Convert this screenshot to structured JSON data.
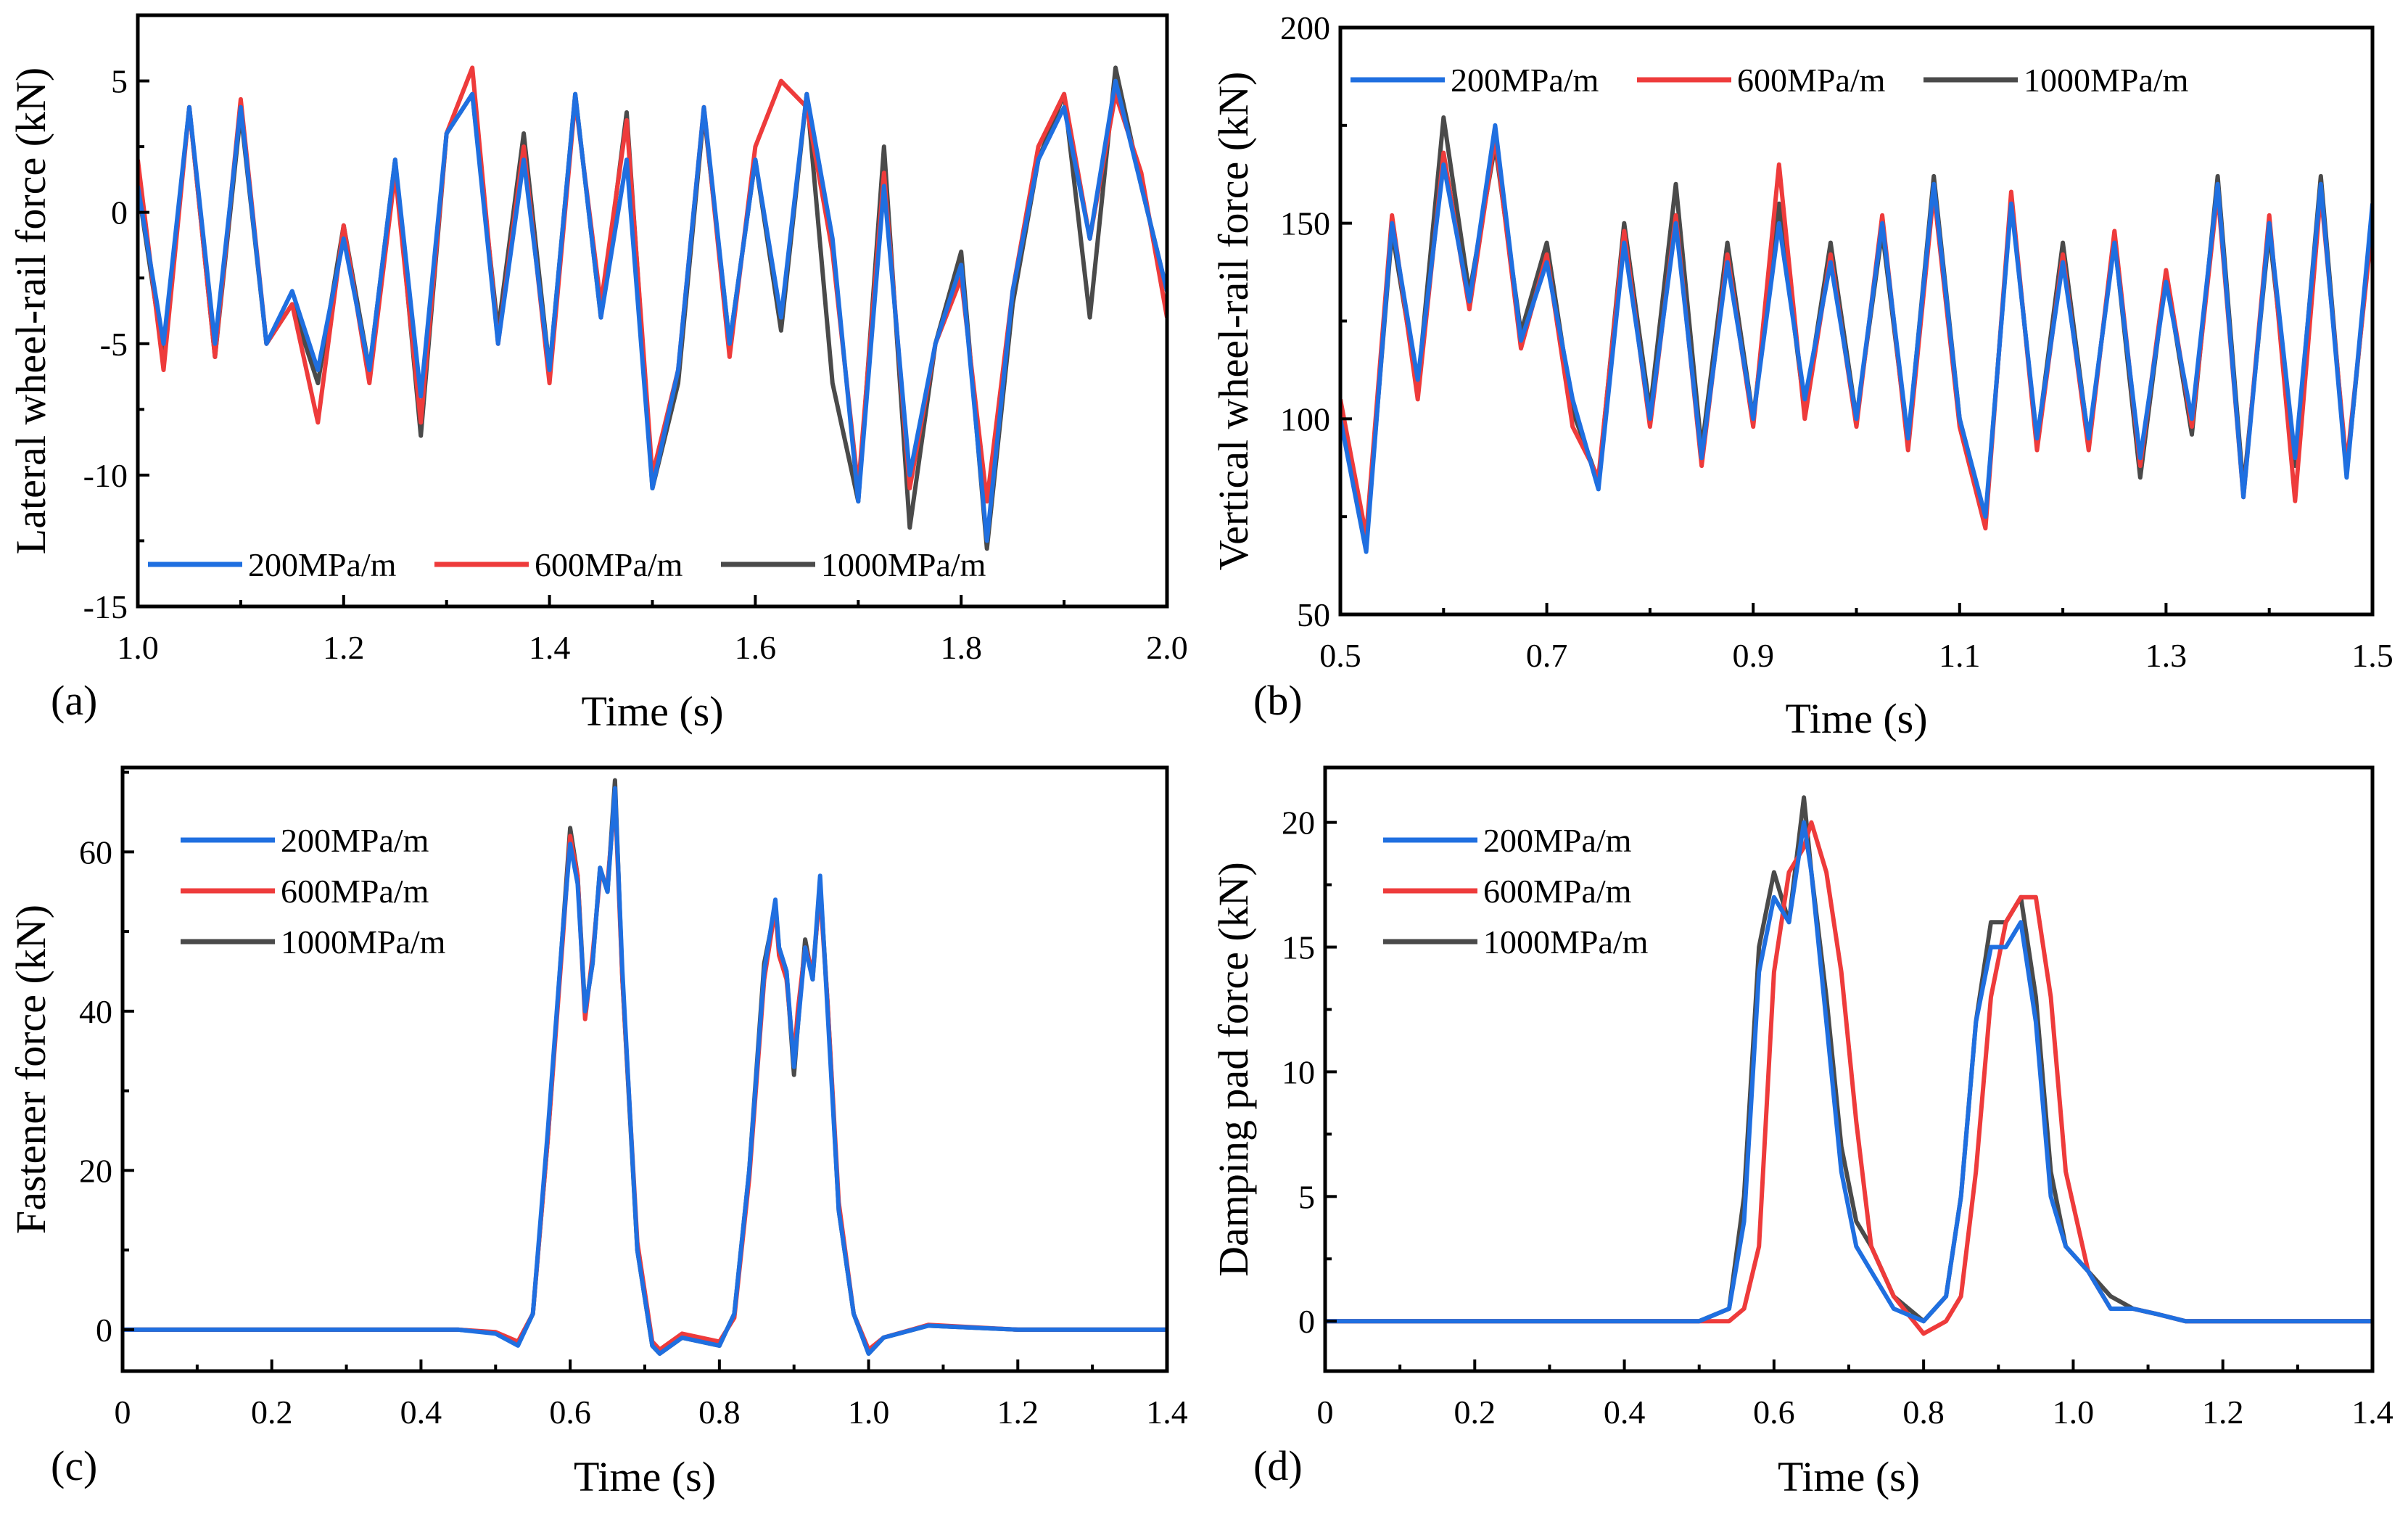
{
  "colors": {
    "s200": "#1f6fe0",
    "s600": "#ee3b3b",
    "s1000": "#4a4a4a"
  },
  "chart_data": [
    {
      "panel": "(a)",
      "type": "line",
      "xlabel": "Time (s)",
      "ylabel": "Lateral wheel-rail force (kN)",
      "xlim": [
        1.0,
        2.0
      ],
      "ylim": [
        -15,
        7.5
      ],
      "xticks": [
        1.0,
        1.2,
        1.4,
        1.6,
        1.8,
        2.0
      ],
      "xtick_labels": [
        "1.0",
        "1.2",
        "1.4",
        "1.6",
        "1.8",
        "2.0"
      ],
      "yticks": [
        -15,
        -10,
        -5,
        0,
        5
      ],
      "ytick_labels": [
        "-15",
        "-10",
        "-5",
        "0",
        "5"
      ],
      "legend": "bottom-horizontal",
      "x": [
        1.0,
        1.025,
        1.05,
        1.075,
        1.1,
        1.125,
        1.15,
        1.175,
        1.2,
        1.225,
        1.25,
        1.275,
        1.3,
        1.325,
        1.35,
        1.375,
        1.4,
        1.425,
        1.45,
        1.475,
        1.5,
        1.525,
        1.55,
        1.575,
        1.6,
        1.625,
        1.65,
        1.675,
        1.7,
        1.725,
        1.75,
        1.775,
        1.8,
        1.825,
        1.85,
        1.875,
        1.9,
        1.925,
        1.95,
        1.975,
        2.0
      ],
      "series": [
        {
          "name": "200MPa/m",
          "color": "s200",
          "values": [
            1,
            -5,
            4,
            -5,
            4,
            -5,
            -3,
            -6,
            -1,
            -6,
            2,
            -7,
            3,
            4.5,
            -5,
            2,
            -6,
            4.5,
            -4,
            2,
            -10.5,
            -6,
            4,
            -5,
            2,
            -4,
            4.5,
            -1,
            -11,
            1,
            -10,
            -5,
            -2,
            -12.5,
            -3,
            2,
            4,
            -1,
            5,
            1,
            -3
          ]
        },
        {
          "name": "600MPa/m",
          "color": "s600",
          "values": [
            2,
            -6,
            4,
            -5.5,
            4.3,
            -5,
            -3.5,
            -8,
            -0.5,
            -6.5,
            1.5,
            -8,
            3,
            5.5,
            -5,
            2.5,
            -6.5,
            4.3,
            -3.5,
            3.5,
            -10,
            -6,
            4,
            -5.5,
            2.5,
            5,
            4,
            -1.5,
            -10.5,
            1.5,
            -10.5,
            -5,
            -2.5,
            -11,
            -3,
            2.5,
            4.5,
            -1,
            4.5,
            1.5,
            -4
          ]
        },
        {
          "name": "1000MPa/m",
          "color": "s1000",
          "values": [
            1,
            -5.5,
            4,
            -5.5,
            3.8,
            -5,
            -3.5,
            -6.5,
            -0.5,
            -6,
            2,
            -8.5,
            3,
            4.5,
            -4.5,
            3,
            -6,
            4.5,
            -4,
            3.8,
            -10.5,
            -6.5,
            3.8,
            -5,
            2,
            -4.5,
            4.5,
            -6.5,
            -11,
            2.5,
            -12,
            -5,
            -1.5,
            -12.8,
            -3.5,
            2,
            4.5,
            -4,
            5.5,
            1,
            -3
          ]
        }
      ]
    },
    {
      "panel": "(b)",
      "type": "line",
      "xlabel": "Time (s)",
      "ylabel": "Vertical wheel-rail force (kN)",
      "xlim": [
        0.5,
        1.5
      ],
      "ylim": [
        50,
        200
      ],
      "xticks": [
        0.5,
        0.7,
        0.9,
        1.1,
        1.3,
        1.5
      ],
      "xtick_labels": [
        "0.5",
        "0.7",
        "0.9",
        "1.1",
        "1.3",
        "1.5"
      ],
      "yticks": [
        50,
        100,
        150,
        200
      ],
      "ytick_labels": [
        "50",
        "100",
        "150",
        "200"
      ],
      "legend": "top-horizontal",
      "x": [
        0.5,
        0.525,
        0.55,
        0.575,
        0.6,
        0.625,
        0.65,
        0.675,
        0.7,
        0.725,
        0.75,
        0.775,
        0.8,
        0.825,
        0.85,
        0.875,
        0.9,
        0.925,
        0.95,
        0.975,
        1.0,
        1.025,
        1.05,
        1.075,
        1.1,
        1.125,
        1.15,
        1.175,
        1.2,
        1.225,
        1.25,
        1.275,
        1.3,
        1.325,
        1.35,
        1.375,
        1.4,
        1.425,
        1.45,
        1.475,
        1.5
      ],
      "series": [
        {
          "name": "200MPa/m",
          "color": "s200",
          "values": [
            100,
            66,
            150,
            110,
            165,
            130,
            175,
            120,
            140,
            105,
            82,
            145,
            100,
            150,
            90,
            140,
            100,
            150,
            105,
            140,
            100,
            150,
            95,
            160,
            100,
            75,
            155,
            95,
            140,
            95,
            145,
            90,
            135,
            100,
            160,
            80,
            150,
            90,
            160,
            85,
            155
          ]
        },
        {
          "name": "600MPa/m",
          "color": "s600",
          "values": [
            105,
            70,
            152,
            105,
            168,
            128,
            172,
            118,
            142,
            98,
            85,
            148,
            98,
            152,
            88,
            142,
            98,
            165,
            100,
            142,
            98,
            152,
            92,
            158,
            98,
            72,
            158,
            92,
            142,
            92,
            148,
            88,
            138,
            98,
            158,
            80,
            152,
            79,
            158,
            88,
            150
          ]
        },
        {
          "name": "1000MPa/m",
          "color": "s1000",
          "values": [
            102,
            68,
            148,
            108,
            177,
            132,
            170,
            122,
            145,
            102,
            84,
            150,
            102,
            160,
            92,
            145,
            100,
            155,
            102,
            145,
            100,
            148,
            94,
            162,
            100,
            74,
            156,
            94,
            145,
            94,
            146,
            85,
            137,
            96,
            162,
            82,
            148,
            88,
            162,
            86,
            152
          ]
        }
      ]
    },
    {
      "panel": "(c)",
      "type": "line",
      "xlabel": "Time (s)",
      "ylabel": "Fastener force (kN)",
      "xlim": [
        0,
        1.4
      ],
      "ylim": [
        -5.2,
        70.6
      ],
      "xticks": [
        0,
        0.2,
        0.4,
        0.6,
        0.8,
        1.0,
        1.2,
        1.4
      ],
      "xtick_labels": [
        "0",
        "0.2",
        "0.4",
        "0.6",
        "0.8",
        "1.0",
        "1.2",
        "1.4"
      ],
      "yticks": [
        0,
        20,
        40,
        60
      ],
      "ytick_labels": [
        "0",
        "20",
        "40",
        "60"
      ],
      "legend": "top-left",
      "x": [
        0,
        0.45,
        0.5,
        0.53,
        0.55,
        0.57,
        0.59,
        0.6,
        0.61,
        0.62,
        0.63,
        0.64,
        0.65,
        0.66,
        0.67,
        0.69,
        0.71,
        0.72,
        0.75,
        0.8,
        0.82,
        0.84,
        0.86,
        0.875,
        0.88,
        0.89,
        0.9,
        0.905,
        0.915,
        0.925,
        0.935,
        0.945,
        0.96,
        0.98,
        1.0,
        1.02,
        1.08,
        1.2,
        1.4
      ],
      "series": [
        {
          "name": "200MPa/m",
          "color": "s200",
          "values": [
            0,
            0,
            -0.5,
            -2,
            2,
            25,
            50,
            61,
            56,
            40,
            46,
            58,
            55,
            68,
            45,
            10,
            -2,
            -3,
            -1,
            -2,
            2,
            20,
            45,
            54,
            48,
            45,
            33,
            38,
            48,
            44,
            57,
            40,
            15,
            2,
            -3,
            -1,
            0.5,
            0,
            0
          ]
        },
        {
          "name": "600MPa/m",
          "color": "s600",
          "values": [
            0,
            0,
            -0.3,
            -1.5,
            2,
            24,
            49,
            62,
            57,
            39,
            47,
            57,
            56,
            67,
            44,
            11,
            -1.5,
            -2.5,
            -0.5,
            -1.5,
            1.5,
            19,
            44,
            53,
            47,
            44,
            34,
            40,
            48,
            45,
            55,
            41,
            16,
            2,
            -2.5,
            -1,
            0.6,
            0,
            0
          ]
        },
        {
          "name": "1000MPa/m",
          "color": "s1000",
          "values": [
            0,
            0,
            -0.4,
            -1.8,
            2,
            24,
            50,
            63,
            57,
            40,
            46,
            58,
            55,
            69,
            44,
            10,
            -2,
            -3,
            -1,
            -2,
            2,
            20,
            46,
            53,
            48,
            45,
            32,
            38,
            49,
            44,
            56,
            41,
            15,
            2,
            -3,
            -1,
            0.5,
            0,
            0
          ]
        }
      ]
    },
    {
      "panel": "(d)",
      "type": "line",
      "xlabel": "Time (s)",
      "ylabel": "Damping pad force (kN)",
      "xlim": [
        0,
        1.4
      ],
      "ylim": [
        -2,
        22.2
      ],
      "xticks": [
        0,
        0.2,
        0.4,
        0.6,
        0.8,
        1.0,
        1.2,
        1.4
      ],
      "xtick_labels": [
        "0",
        "0.2",
        "0.4",
        "0.6",
        "0.8",
        "1.0",
        "1.2",
        "1.4"
      ],
      "yticks": [
        0,
        5,
        10,
        15,
        20
      ],
      "ytick_labels": [
        "0",
        "5",
        "10",
        "15",
        "20"
      ],
      "legend": "top-left",
      "x": [
        0,
        0.5,
        0.54,
        0.56,
        0.58,
        0.6,
        0.62,
        0.64,
        0.65,
        0.67,
        0.69,
        0.71,
        0.73,
        0.76,
        0.8,
        0.83,
        0.85,
        0.87,
        0.89,
        0.91,
        0.93,
        0.95,
        0.97,
        0.99,
        1.02,
        1.05,
        1.08,
        1.11,
        1.15,
        1.25,
        1.4
      ],
      "series": [
        {
          "name": "200MPa/m",
          "color": "s200",
          "values": [
            0,
            0,
            0.5,
            4,
            14,
            17,
            16,
            20,
            18,
            12,
            6,
            3,
            2,
            0.5,
            0,
            1,
            5,
            12,
            15,
            15,
            16,
            12,
            5,
            3,
            2,
            0.5,
            0.5,
            0.3,
            0,
            0,
            0
          ]
        },
        {
          "name": "600MPa/m",
          "color": "s600",
          "values": [
            0,
            0,
            0,
            0.5,
            3,
            14,
            18,
            19,
            20,
            18,
            14,
            8,
            3,
            1,
            -0.5,
            0,
            1,
            6,
            13,
            16,
            17,
            17,
            13,
            6,
            2,
            0.5,
            0.5,
            0.3,
            0,
            0,
            0
          ]
        },
        {
          "name": "1000MPa/m",
          "color": "s1000",
          "values": [
            0,
            0,
            0.5,
            5,
            15,
            18,
            16,
            21,
            18,
            13,
            7,
            4,
            3,
            1,
            0,
            1,
            5,
            12,
            16,
            16,
            17,
            13,
            6,
            3,
            2,
            1,
            0.5,
            0.3,
            0,
            0,
            0
          ]
        }
      ]
    }
  ]
}
